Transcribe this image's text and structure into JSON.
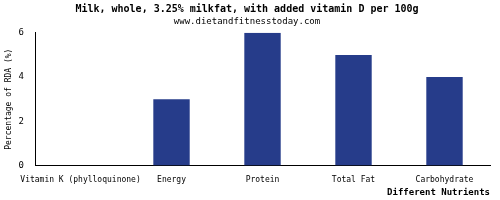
{
  "chart_data": {
    "type": "bar",
    "title": "Milk, whole, 3.25% milkfat, with added vitamin D per 100g",
    "subtitle": "www.dietandfitnesstoday.com",
    "x_label": "Different Nutrients",
    "y_label": "Percentage of RDA (%)",
    "categories": [
      "Vitamin K (phylloquinone)",
      "Energy",
      "Protein",
      "Total Fat",
      "Carbohydrate"
    ],
    "values": [
      0,
      3,
      6,
      5,
      4
    ],
    "color": "#263c8a",
    "ylim": [
      0,
      6
    ],
    "yticks": [
      0,
      2,
      4,
      6
    ],
    "grid": false
  }
}
